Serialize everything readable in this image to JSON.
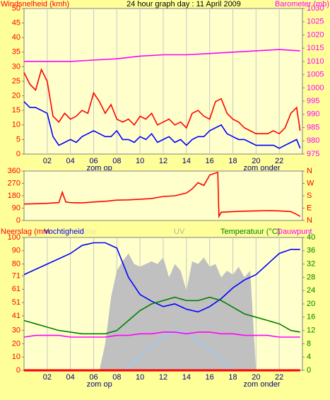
{
  "chart_data": [
    {
      "type": "line",
      "title": "24 hour graph day : 11 April 2009",
      "ylabel": "Windsnelheid (kmh)",
      "y2label": "Barometer (mb)",
      "ylabel_color": "#ff0000",
      "y2label_color": "#ff00ff",
      "ytick_color": "#ff0000",
      "y2tick_color": "#ff00ff",
      "xlim": [
        0,
        24
      ],
      "xticks": [
        {
          "value": 2,
          "label": "02"
        },
        {
          "value": 4,
          "label": "04"
        },
        {
          "value": 6,
          "label": "06"
        },
        {
          "value": 8,
          "label": "08"
        },
        10,
        12,
        14,
        16,
        18,
        20,
        22
      ],
      "ylim": [
        0,
        50
      ],
      "yticks": [
        0,
        5,
        10,
        15,
        20,
        25,
        30,
        35,
        40,
        45,
        50
      ],
      "y2lim": [
        975,
        1030
      ],
      "y2ticks": [
        975,
        980,
        985,
        990,
        995,
        1000,
        1005,
        1010,
        1015,
        1020,
        1025,
        1030
      ],
      "annotations": [
        {
          "text": "zom op",
          "x": 6.5
        },
        {
          "text": "zom onder",
          "x": 20.5
        }
      ],
      "series": [
        {
          "color": "#ff0000",
          "x": [
            0,
            0.5,
            1,
            1.5,
            2,
            2.5,
            3,
            3.5,
            4,
            4.5,
            5,
            5.5,
            6,
            6.5,
            7,
            7.5,
            8,
            8.5,
            9,
            9.5,
            10,
            10.5,
            11,
            11.5,
            12,
            12.5,
            13,
            13.5,
            14,
            14.5,
            15,
            15.5,
            16,
            16.5,
            17,
            17.5,
            18,
            18.5,
            19,
            19.5,
            20,
            20.5,
            21,
            21.5,
            22,
            22.5,
            23,
            23.5,
            23.8
          ],
          "values": [
            28,
            24,
            22,
            29,
            25,
            13,
            11,
            14,
            12,
            13,
            15,
            14,
            21,
            18,
            14,
            17,
            12,
            11,
            12,
            10,
            13,
            12,
            14,
            10,
            11,
            12,
            10,
            11,
            9,
            14,
            15,
            13,
            12,
            18,
            19,
            14,
            12,
            11,
            9,
            8,
            7,
            7,
            7,
            8,
            7,
            9,
            14,
            16,
            8
          ]
        },
        {
          "color": "#0000ff",
          "x": [
            0,
            0.5,
            1,
            1.5,
            2,
            2.5,
            3,
            3.5,
            4,
            4.5,
            5,
            5.5,
            6,
            6.5,
            7,
            7.5,
            8,
            8.5,
            9,
            9.5,
            10,
            10.5,
            11,
            11.5,
            12,
            12.5,
            13,
            13.5,
            14,
            14.5,
            15,
            15.5,
            16,
            16.5,
            17,
            17.5,
            18,
            18.5,
            19,
            19.5,
            20,
            20.5,
            21,
            21.5,
            22,
            22.5,
            23,
            23.5,
            23.8
          ],
          "values": [
            18,
            16,
            16,
            15,
            14,
            6,
            3,
            4,
            5,
            4,
            6,
            7,
            8,
            7,
            6,
            6,
            8,
            5,
            5,
            4,
            6,
            5,
            7,
            4,
            5,
            6,
            4,
            5,
            3,
            5,
            6,
            6,
            8,
            9,
            10,
            7,
            6,
            5,
            5,
            4,
            3,
            3,
            3,
            3,
            2,
            3,
            4,
            5,
            2
          ]
        },
        {
          "color": "#ff00ff",
          "axis": "y2",
          "x": [
            0,
            2,
            4,
            6,
            8,
            10,
            12,
            14,
            16,
            18,
            20,
            22,
            23.8
          ],
          "values": [
            1010,
            1010,
            1010,
            1010.5,
            1011,
            1012,
            1012.5,
            1012.5,
            1013,
            1013.5,
            1014,
            1014.5,
            1014
          ]
        }
      ]
    },
    {
      "type": "line",
      "ytick_color": "#ff0000",
      "y2tick_color": "#ff0000",
      "xlim": [
        0,
        24
      ],
      "ylim": [
        0,
        360
      ],
      "yticks": [
        0,
        90,
        180,
        270,
        360
      ],
      "y2lim": [
        0,
        360
      ],
      "y2ticks": [
        {
          "value": 0,
          "label": "N"
        },
        {
          "value": 90,
          "label": "E"
        },
        {
          "value": 180,
          "label": "S"
        },
        {
          "value": 270,
          "label": "W"
        },
        {
          "value": 360,
          "label": "N"
        }
      ],
      "series": [
        {
          "color": "#ff0000",
          "x": [
            0,
            1,
            2,
            3,
            3.3,
            3.6,
            4,
            5,
            6,
            7,
            8,
            9,
            10,
            11,
            12,
            13,
            14,
            14.5,
            15,
            15.5,
            16,
            16.5,
            16.7,
            16.8,
            17,
            18,
            19,
            20,
            21,
            22,
            23,
            23.5,
            23.8
          ],
          "values": [
            120,
            122,
            125,
            130,
            205,
            135,
            130,
            128,
            135,
            140,
            148,
            150,
            155,
            160,
            175,
            180,
            200,
            230,
            275,
            255,
            330,
            345,
            350,
            30,
            60,
            65,
            68,
            70,
            72,
            70,
            65,
            45,
            30
          ]
        }
      ]
    },
    {
      "type": "line",
      "ytick_color": "#ff0000",
      "y2tick_color": "#008000",
      "xlim": [
        0,
        24
      ],
      "xticks": [
        {
          "value": 2,
          "label": "02"
        },
        {
          "value": 4,
          "label": "04"
        },
        {
          "value": 6,
          "label": "06"
        },
        {
          "value": 8,
          "label": "08"
        },
        10,
        12,
        14,
        16,
        18,
        20,
        22
      ],
      "ylim": [
        0,
        100
      ],
      "yticks": [
        0,
        10,
        20,
        30,
        41,
        51,
        61,
        71,
        80,
        90,
        100
      ],
      "y2lim": [
        0,
        40
      ],
      "y2ticks": [
        0,
        4,
        8,
        12,
        16,
        20,
        24,
        28,
        32,
        36,
        40
      ],
      "annotations": [
        {
          "text": "zom op",
          "x": 6.5
        },
        {
          "text": "zom onder",
          "x": 20.5
        }
      ],
      "series": [
        {
          "name": "Solar",
          "kind": "area",
          "color": "#c0c0c0",
          "label_color": "#e8e8a0",
          "x": [
            0,
            6.5,
            7,
            7.5,
            8,
            8.5,
            9,
            9.5,
            10,
            10.5,
            11,
            11.5,
            12,
            12.5,
            13,
            13.5,
            14,
            14.5,
            15,
            15.5,
            16,
            16.5,
            17,
            17.5,
            18,
            18.5,
            19,
            19.5,
            20,
            23.8
          ],
          "values": [
            0,
            0,
            20,
            55,
            75,
            82,
            88,
            80,
            78,
            80,
            82,
            80,
            85,
            70,
            80,
            75,
            60,
            82,
            80,
            85,
            78,
            80,
            70,
            75,
            72,
            78,
            70,
            75,
            0,
            0
          ]
        },
        {
          "name": "UV",
          "color": "#99ccff",
          "label_color": "#b0b0b0",
          "x": [
            0,
            8.5,
            9,
            10,
            11,
            12,
            13,
            14,
            15,
            16,
            17,
            18,
            23.8
          ],
          "values": [
            0,
            0,
            3,
            10,
            18,
            25,
            30,
            28,
            22,
            15,
            8,
            0,
            0
          ]
        },
        {
          "name": "Neerslag (mm",
          "color": "#ff0000",
          "x": [
            0,
            23.8
          ],
          "values": [
            0,
            0
          ]
        },
        {
          "name": "Vochtigheid",
          "color": "#0000ff",
          "x": [
            0,
            1,
            2,
            3,
            4,
            5,
            6,
            7,
            8,
            9,
            10,
            11,
            12,
            13,
            14,
            15,
            16,
            17,
            18,
            19,
            20,
            21,
            22,
            23,
            23.8
          ],
          "values": [
            72,
            76,
            80,
            84,
            88,
            94,
            96,
            96,
            92,
            70,
            57,
            52,
            48,
            50,
            46,
            44,
            48,
            54,
            62,
            68,
            72,
            80,
            88,
            91,
            91
          ]
        },
        {
          "name": "Temperatuur (°C)",
          "color": "#008000",
          "axis": "y2",
          "x": [
            0,
            1,
            2,
            3,
            4,
            5,
            6,
            7,
            8,
            9,
            10,
            11,
            12,
            13,
            14,
            15,
            16,
            17,
            18,
            19,
            20,
            21,
            22,
            23,
            23.8
          ],
          "values": [
            15,
            14,
            13,
            12,
            11.5,
            11,
            11,
            11,
            12,
            15,
            18,
            20,
            21,
            22,
            21,
            21,
            22,
            21,
            19,
            17,
            16,
            15,
            14,
            12,
            11.5
          ]
        },
        {
          "name": "Dauwpunt",
          "color": "#ff00ff",
          "axis": "y2",
          "x": [
            0,
            1,
            2,
            3,
            4,
            5,
            6,
            7,
            8,
            9,
            10,
            11,
            12,
            13,
            14,
            15,
            16,
            17,
            18,
            19,
            20,
            21,
            22,
            23,
            23.8
          ],
          "values": [
            10,
            10.5,
            10.5,
            10.5,
            10,
            10,
            10,
            10,
            10.5,
            10.5,
            11,
            11,
            11.5,
            11.5,
            11,
            11.5,
            11.5,
            11,
            11,
            10.5,
            10.5,
            10.5,
            10,
            10,
            10
          ]
        }
      ]
    }
  ]
}
